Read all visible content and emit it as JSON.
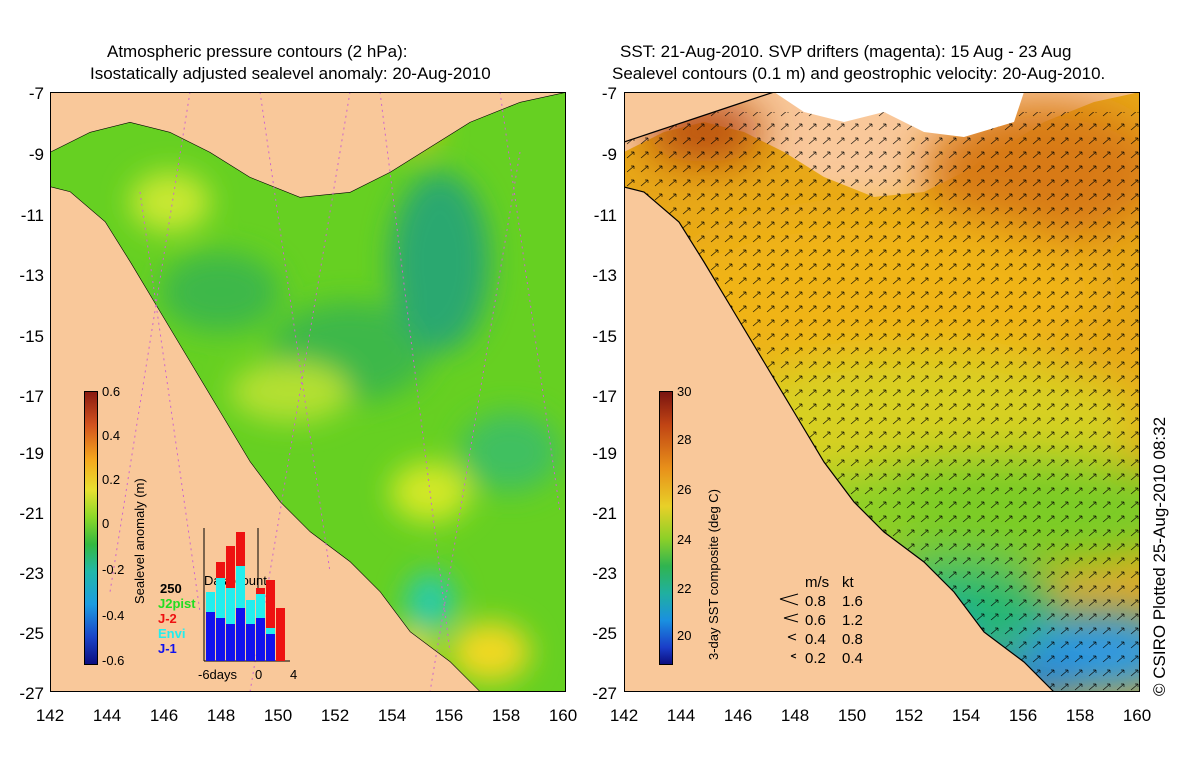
{
  "left_panel": {
    "title_line1": "Atmospheric pressure contours (2 hPa):",
    "title_line2": "Isostatically adjusted sealevel anomaly: 20-Aug-2010",
    "colorbar_label": "Sealevel anomaly (m)",
    "colorbar_ticks": [
      "0.6",
      "0.4",
      "0.2",
      "0",
      "-0.2",
      "-0.4",
      "-0.6"
    ],
    "inset": {
      "title": "Data count",
      "count_label": "250",
      "legend": [
        {
          "label": "J2pist",
          "color": "#22dd22"
        },
        {
          "label": "J-2",
          "color": "#ee1111"
        },
        {
          "label": "Envi",
          "color": "#22eeee"
        },
        {
          "label": "J-1",
          "color": "#1111ee"
        }
      ],
      "xaxis": [
        "-6days",
        "0",
        "4"
      ]
    }
  },
  "right_panel": {
    "title_line1": "SST: 21-Aug-2010. SVP drifters (magenta): 15 Aug - 23 Aug",
    "title_line2": "Sealevel contours (0.1 m) and geostrophic velocity: 20-Aug-2010.",
    "colorbar_label": "3-day SST composite (deg C)",
    "colorbar_ticks": [
      "30",
      "28",
      "26",
      "24",
      "22",
      "20"
    ],
    "velocity_legend": {
      "header_ms": "m/s",
      "header_kt": "kt",
      "rows": [
        {
          "ms": "0.8",
          "kt": "1.6"
        },
        {
          "ms": "0.6",
          "kt": "1.2"
        },
        {
          "ms": "0.4",
          "kt": "0.8"
        },
        {
          "ms": "0.2",
          "kt": "0.4"
        }
      ]
    }
  },
  "axes": {
    "latitudes": [
      "-7",
      "-9",
      "-11",
      "-13",
      "-15",
      "-17",
      "-19",
      "-21",
      "-23",
      "-25",
      "-27"
    ],
    "longitudes": [
      "142",
      "144",
      "146",
      "148",
      "150",
      "152",
      "154",
      "156",
      "158",
      "160"
    ]
  },
  "credit": "© CSIRO Plotted 25-Aug-2010 08:32",
  "colors": {
    "land": "#f9c89a",
    "sea_anomaly": "#66d022",
    "sst_warm": "#e88a10"
  }
}
